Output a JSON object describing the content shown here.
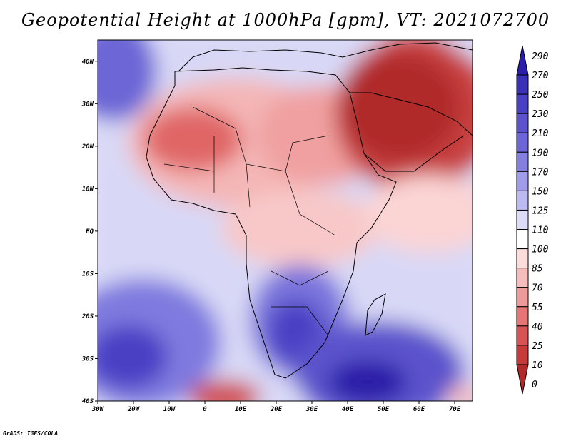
{
  "title": "Geopotential Height at 1000hPa [gpm], VT: 2021072700",
  "footer": "GrADS: IGES/COLA",
  "lon_ticks": [
    "30W",
    "20W",
    "10W",
    "0",
    "10E",
    "20E",
    "30E",
    "40E",
    "50E",
    "60E",
    "70E"
  ],
  "lat_ticks": [
    "40N",
    "30N",
    "20N",
    "10N",
    "EQ",
    "10S",
    "20S",
    "30S",
    "40S"
  ],
  "colorbar": {
    "labels": [
      "290",
      "270",
      "250",
      "230",
      "210",
      "190",
      "170",
      "150",
      "125",
      "110",
      "100",
      "85",
      "70",
      "55",
      "40",
      "25",
      "10",
      "0"
    ],
    "colors": [
      "#2b1ea8",
      "#3b31b8",
      "#4a40c4",
      "#5b52cc",
      "#6c66d6",
      "#8580e0",
      "#a09ce9",
      "#bcbaf1",
      "#dcdcf8",
      "#ffffff",
      "#fddcdc",
      "#f7bcbc",
      "#ef9a9a",
      "#e67676",
      "#d85454",
      "#c73a3a",
      "#b02a2a"
    ]
  }
}
